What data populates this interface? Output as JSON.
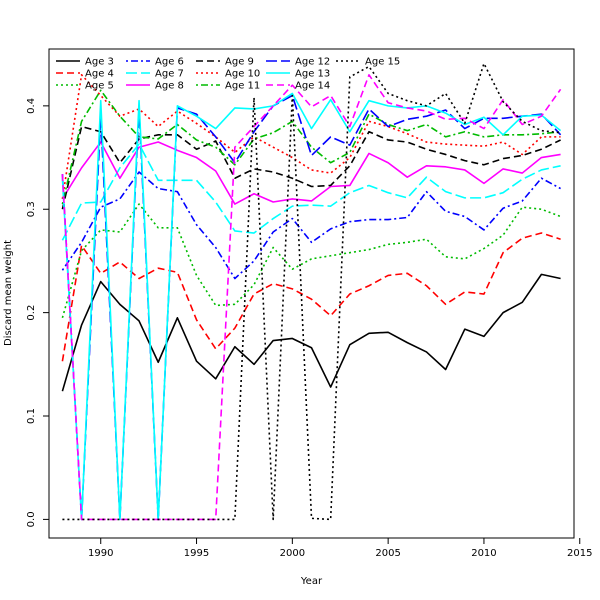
{
  "chart_data": {
    "type": "line",
    "title": "",
    "xlabel": "Year",
    "ylabel": "Discard mean weight",
    "xlim": [
      1987.3,
      2014.7
    ],
    "ylim": [
      -0.018,
      0.455
    ],
    "x_ticks": [
      1990,
      1995,
      2000,
      2005,
      2010,
      2015
    ],
    "y_ticks": [
      0.0,
      0.1,
      0.2,
      0.3,
      0.4
    ],
    "y_tick_labels": [
      "0.0",
      "0.1",
      "0.2",
      "0.3",
      "0.4"
    ],
    "grid": false,
    "legend_position": "top-left",
    "x": [
      1988,
      1989,
      1990,
      1991,
      1992,
      1993,
      1994,
      1995,
      1996,
      1997,
      1998,
      1999,
      2000,
      2001,
      2002,
      2003,
      2004,
      2005,
      2006,
      2007,
      2008,
      2009,
      2010,
      2011,
      2012,
      2013,
      2014
    ],
    "series": [
      {
        "name": "Age 3",
        "color": "#000000",
        "dash": "solid",
        "values": [
          0.124,
          0.188,
          0.23,
          0.208,
          0.192,
          0.152,
          0.195,
          0.153,
          0.136,
          0.167,
          0.15,
          0.173,
          0.175,
          0.166,
          0.128,
          0.169,
          0.18,
          0.181,
          0.171,
          0.162,
          0.145,
          0.184,
          0.177,
          0.2,
          0.21,
          0.237,
          0.233
        ]
      },
      {
        "name": "Age 4",
        "color": "#ff0000",
        "dash": "dashed",
        "values": [
          0.153,
          0.265,
          0.238,
          0.249,
          0.233,
          0.243,
          0.239,
          0.193,
          0.165,
          0.185,
          0.218,
          0.228,
          0.223,
          0.213,
          0.197,
          0.218,
          0.226,
          0.236,
          0.238,
          0.226,
          0.208,
          0.22,
          0.218,
          0.258,
          0.272,
          0.277,
          0.271
        ]
      },
      {
        "name": "Age 5",
        "color": "#00bb00",
        "dash": "dotted",
        "values": [
          0.195,
          0.26,
          0.28,
          0.278,
          0.305,
          0.282,
          0.282,
          0.236,
          0.207,
          0.208,
          0.227,
          0.263,
          0.242,
          0.252,
          0.255,
          0.258,
          0.261,
          0.266,
          0.268,
          0.271,
          0.254,
          0.252,
          0.262,
          0.275,
          0.302,
          0.3,
          0.293
        ]
      },
      {
        "name": "Age 6",
        "color": "#0000ff",
        "dash": "dashdot",
        "values": [
          0.241,
          0.268,
          0.302,
          0.31,
          0.336,
          0.32,
          0.317,
          0.285,
          0.263,
          0.233,
          0.25,
          0.278,
          0.291,
          0.268,
          0.281,
          0.288,
          0.29,
          0.29,
          0.292,
          0.317,
          0.298,
          0.293,
          0.28,
          0.301,
          0.308,
          0.33,
          0.32
        ]
      },
      {
        "name": "Age 7",
        "color": "#00ffff",
        "dash": "longdash",
        "values": [
          0.27,
          0.306,
          0.307,
          0.34,
          0.363,
          0.328,
          0.328,
          0.328,
          0.307,
          0.279,
          0.277,
          0.291,
          0.303,
          0.304,
          0.303,
          0.316,
          0.323,
          0.316,
          0.311,
          0.331,
          0.317,
          0.311,
          0.311,
          0.316,
          0.329,
          0.338,
          0.342
        ]
      },
      {
        "name": "Age 8",
        "color": "#ff00ff",
        "dash": "solid",
        "values": [
          0.31,
          0.34,
          0.365,
          0.33,
          0.36,
          0.365,
          0.357,
          0.35,
          0.337,
          0.305,
          0.315,
          0.307,
          0.31,
          0.308,
          0.322,
          0.323,
          0.354,
          0.345,
          0.331,
          0.342,
          0.341,
          0.338,
          0.325,
          0.339,
          0.335,
          0.35,
          0.353
        ]
      },
      {
        "name": "Age 9",
        "color": "#000000",
        "dash": "dashed",
        "values": [
          0.3,
          0.38,
          0.375,
          0.345,
          0.368,
          0.372,
          0.372,
          0.358,
          0.366,
          0.33,
          0.339,
          0.336,
          0.33,
          0.322,
          0.323,
          0.342,
          0.375,
          0.367,
          0.365,
          0.358,
          0.353,
          0.347,
          0.343,
          0.349,
          0.352,
          0.358,
          0.367
        ]
      },
      {
        "name": "Age 10",
        "color": "#ff0000",
        "dash": "dotted",
        "values": [
          0.31,
          0.43,
          0.41,
          0.39,
          0.397,
          0.38,
          0.395,
          0.383,
          0.37,
          0.355,
          0.37,
          0.36,
          0.35,
          0.338,
          0.335,
          0.35,
          0.385,
          0.38,
          0.373,
          0.365,
          0.363,
          0.362,
          0.361,
          0.365,
          0.353,
          0.37,
          0.37
        ]
      },
      {
        "name": "Age 11",
        "color": "#00bb00",
        "dash": "dashdot",
        "values": [
          0.305,
          0.385,
          0.415,
          0.39,
          0.37,
          0.368,
          0.382,
          0.367,
          0.36,
          0.343,
          0.368,
          0.374,
          0.385,
          0.36,
          0.345,
          0.355,
          0.392,
          0.382,
          0.376,
          0.382,
          0.37,
          0.375,
          0.37,
          0.372,
          0.372,
          0.373,
          0.375
        ]
      },
      {
        "name": "Age 12",
        "color": "#0000ff",
        "dash": "longdash",
        "values": [
          0.334,
          0.0,
          0.39,
          0.0,
          0.398,
          0.0,
          0.398,
          0.392,
          0.37,
          0.345,
          0.375,
          0.4,
          0.41,
          0.352,
          0.37,
          0.362,
          0.397,
          0.38,
          0.387,
          0.39,
          0.396,
          0.378,
          0.388,
          0.388,
          0.39,
          0.392,
          0.372
        ]
      },
      {
        "name": "Age 13",
        "color": "#00ffff",
        "dash": "solid",
        "values": [
          0.33,
          0.0,
          0.405,
          0.0,
          0.405,
          0.0,
          0.4,
          0.39,
          0.378,
          0.398,
          0.397,
          0.4,
          0.412,
          0.378,
          0.406,
          0.375,
          0.405,
          0.4,
          0.398,
          0.4,
          0.393,
          0.382,
          0.389,
          0.372,
          0.39,
          0.391,
          0.376
        ]
      },
      {
        "name": "Age 14",
        "color": "#ff00ff",
        "dash": "dashed",
        "values": [
          0.334,
          0.0,
          0.0,
          0.0,
          0.0,
          0.0,
          0.0,
          0.0,
          0.0,
          0.36,
          0.38,
          0.4,
          0.42,
          0.399,
          0.41,
          0.38,
          0.43,
          0.403,
          0.398,
          0.395,
          0.387,
          0.388,
          0.378,
          0.406,
          0.382,
          0.39,
          0.416
        ]
      },
      {
        "name": "Age 15",
        "color": "#000000",
        "dash": "dotted",
        "values": [
          0.0,
          0.0,
          0.0,
          0.0,
          0.0,
          0.0,
          0.0,
          0.0,
          0.0,
          0.0,
          0.408,
          0.0,
          0.41,
          0.001,
          0.0,
          0.428,
          0.438,
          0.412,
          0.405,
          0.4,
          0.412,
          0.383,
          0.441,
          0.404,
          0.385,
          0.376,
          0.374
        ]
      }
    ]
  }
}
